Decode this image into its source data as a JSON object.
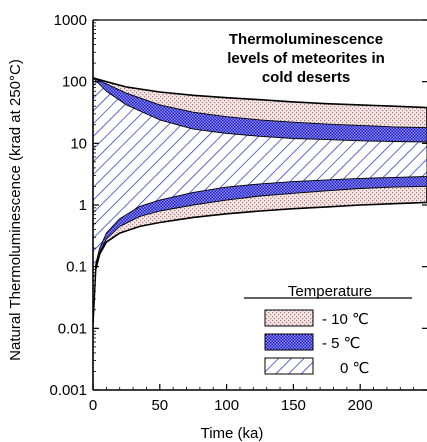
{
  "chart_data": {
    "type": "area",
    "title_lines": [
      "Thermoluminescence",
      "levels of meteorites in",
      "cold deserts"
    ],
    "xlabel": "Time (ka)",
    "ylabel": "Natural Thermoluminescence (krad at 250°C)",
    "xlim": [
      0,
      250
    ],
    "ylim": [
      0.001,
      1000
    ],
    "yscale": "log",
    "x_ticks": [
      0,
      50,
      100,
      150,
      200
    ],
    "x_tick_labels": [
      "0",
      "50",
      "100",
      "150",
      "200"
    ],
    "y_ticks": [
      0.001,
      0.01,
      0.1,
      1,
      10,
      100,
      1000
    ],
    "y_tick_labels": [
      "0.001",
      "0.01",
      "0.1",
      "1",
      "10",
      "100",
      "1000"
    ],
    "legend": {
      "title": "Temperature",
      "placement": "bottom-right",
      "entries": [
        {
          "label": "- 10 ℃",
          "pattern": "dots",
          "color": "#d9a8a8"
        },
        {
          "label": "- 5  ℃",
          "pattern": "grid",
          "color": "#4a4adc"
        },
        {
          "label": "0 ℃",
          "pattern": "hatch",
          "color": "#1e2ab8"
        }
      ]
    },
    "series": [
      {
        "key": "-10C",
        "pattern": "dots",
        "upper": {
          "x": [
            0,
            10,
            25,
            50,
            75,
            100,
            125,
            150,
            175,
            200,
            225,
            250
          ],
          "y": [
            115,
            100,
            82,
            68,
            60,
            55,
            51,
            47,
            44,
            42,
            40,
            38
          ]
        },
        "lower": {
          "x": [
            0,
            2,
            5,
            10,
            20,
            35,
            50,
            75,
            100,
            125,
            150,
            175,
            200,
            225,
            250
          ],
          "y": [
            0.012,
            0.09,
            0.16,
            0.25,
            0.35,
            0.45,
            0.52,
            0.63,
            0.72,
            0.8,
            0.87,
            0.93,
            1.0,
            1.05,
            1.1
          ]
        }
      },
      {
        "key": "-5C",
        "pattern": "grid",
        "upper": {
          "x": [
            0,
            10,
            25,
            50,
            75,
            100,
            125,
            150,
            175,
            200,
            225,
            250
          ],
          "y": [
            115,
            92,
            65,
            42,
            32,
            27,
            24,
            22,
            20.5,
            19.5,
            18.5,
            18
          ]
        },
        "lower": {
          "x": [
            0,
            2,
            5,
            10,
            20,
            35,
            50,
            75,
            100,
            125,
            150,
            175,
            200,
            225,
            250
          ],
          "y": [
            0.012,
            0.1,
            0.17,
            0.28,
            0.45,
            0.65,
            0.8,
            1.0,
            1.2,
            1.4,
            1.55,
            1.7,
            1.85,
            1.95,
            2.0
          ]
        }
      },
      {
        "key": "0C",
        "pattern": "hatch",
        "upper": {
          "x": [
            0,
            10,
            25,
            50,
            75,
            100,
            125,
            150,
            175,
            200,
            225,
            250
          ],
          "y": [
            115,
            70,
            42,
            24,
            17,
            14.5,
            13,
            12,
            11.5,
            11,
            10.7,
            10.5
          ]
        },
        "lower": {
          "x": [
            0,
            2,
            5,
            10,
            20,
            35,
            50,
            75,
            100,
            125,
            150,
            175,
            200,
            225,
            250
          ],
          "y": [
            0.012,
            0.11,
            0.2,
            0.35,
            0.6,
            0.95,
            1.2,
            1.6,
            1.95,
            2.2,
            2.4,
            2.55,
            2.7,
            2.8,
            2.9
          ]
        }
      }
    ]
  }
}
